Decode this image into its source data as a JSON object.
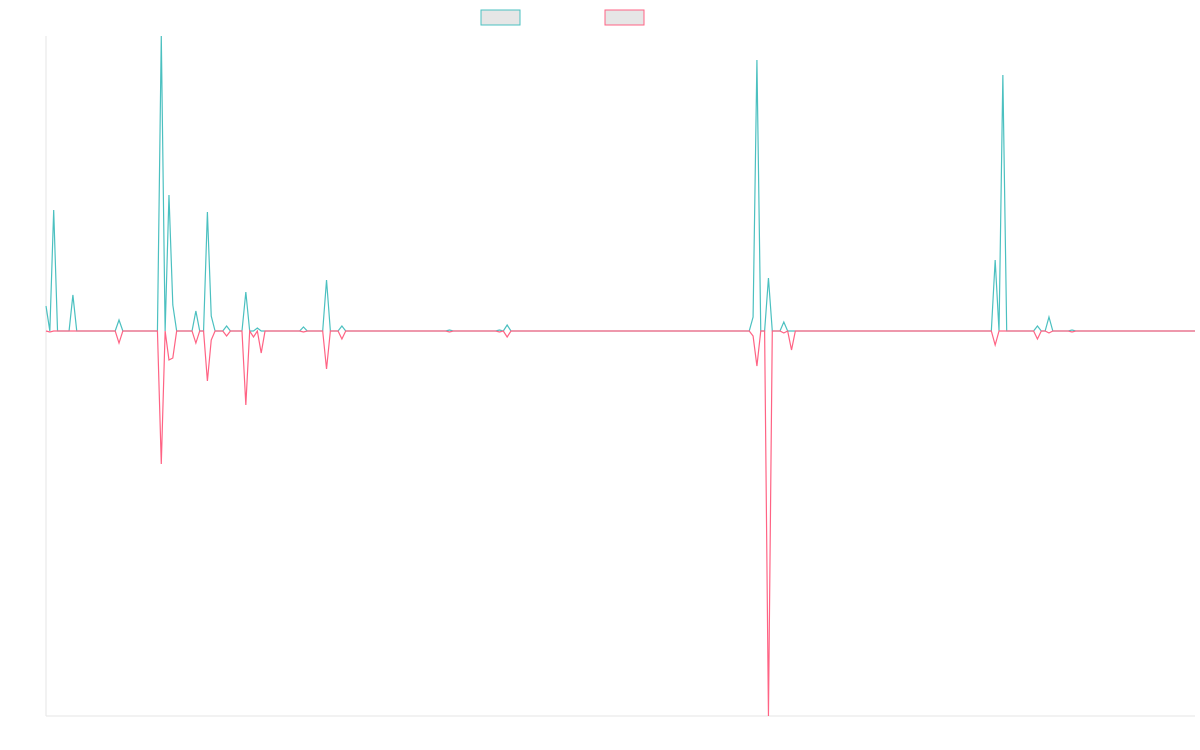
{
  "chart_data": {
    "type": "line",
    "ylim": [
      -385,
      295
    ],
    "series": [
      {
        "color": "#4bc0c0",
        "values": [
          25,
          0,
          121,
          0,
          0,
          0,
          0,
          36,
          0,
          0,
          0,
          0,
          0,
          0,
          0,
          0,
          0,
          0,
          0,
          11,
          0,
          0,
          0,
          0,
          0,
          0,
          0,
          0,
          0,
          0,
          295,
          0,
          136,
          26,
          0,
          0,
          0,
          0,
          0,
          20,
          0,
          0,
          119,
          15,
          0,
          0,
          0,
          5,
          0,
          0,
          0,
          0,
          39,
          0,
          0,
          3,
          0,
          0,
          0,
          0,
          0,
          0,
          0,
          0,
          0,
          0,
          0,
          4,
          0,
          0,
          0,
          0,
          0,
          51,
          0,
          0,
          0,
          5,
          0,
          0,
          0,
          0,
          0,
          0,
          0,
          0,
          0,
          0,
          0,
          0,
          0,
          0,
          0,
          0,
          0,
          0,
          0,
          0,
          0,
          0,
          0,
          0,
          0,
          0,
          0,
          1,
          0,
          0,
          0,
          0,
          0,
          0,
          0,
          0,
          0,
          0,
          0,
          0,
          1,
          0,
          6,
          0,
          0,
          0,
          0,
          0,
          0,
          0,
          0,
          0,
          0,
          0,
          0,
          0,
          0,
          0,
          0,
          0,
          0,
          0,
          0,
          0,
          0,
          0,
          0,
          0,
          0,
          0,
          0,
          0,
          0,
          0,
          0,
          0,
          0,
          0,
          0,
          0,
          0,
          0,
          0,
          0,
          0,
          0,
          0,
          0,
          0,
          0,
          0,
          0,
          0,
          0,
          0,
          0,
          0,
          0,
          0,
          0,
          0,
          0,
          0,
          0,
          0,
          0,
          14,
          271,
          0,
          0,
          53,
          0,
          0,
          0,
          9,
          0,
          0,
          0,
          0,
          0,
          0,
          0,
          0,
          0,
          0,
          0,
          0,
          0,
          0,
          0,
          0,
          0,
          0,
          0,
          0,
          0,
          0,
          0,
          0,
          0,
          0,
          0,
          0,
          0,
          0,
          0,
          0,
          0,
          0,
          0,
          0,
          0,
          0,
          0,
          0,
          0,
          0,
          0,
          0,
          0,
          0,
          0,
          0,
          0,
          0,
          0,
          0,
          0,
          0,
          71,
          0,
          256,
          0,
          0,
          0,
          0,
          0,
          0,
          0,
          0,
          5,
          0,
          0,
          14,
          0,
          0,
          0,
          0,
          0,
          1,
          0,
          0,
          0,
          0,
          0,
          0,
          0,
          0,
          0,
          0,
          0,
          0,
          0,
          0,
          0,
          0,
          0,
          0,
          0,
          0,
          0,
          0,
          0,
          0,
          0,
          0,
          0,
          0,
          0,
          0,
          0,
          0
        ]
      },
      {
        "color": "#ff6384",
        "values": [
          0,
          -1,
          0,
          0,
          0,
          0,
          0,
          0,
          0,
          0,
          0,
          0,
          0,
          0,
          0,
          0,
          0,
          0,
          0,
          -12,
          0,
          0,
          0,
          0,
          0,
          0,
          0,
          0,
          0,
          0,
          -133,
          0,
          -29,
          -27,
          0,
          0,
          0,
          0,
          0,
          -12,
          0,
          0,
          -50,
          -9,
          0,
          0,
          0,
          -5,
          0,
          0,
          0,
          0,
          -74,
          0,
          -6,
          0,
          -22,
          0,
          0,
          0,
          0,
          0,
          0,
          0,
          0,
          0,
          0,
          -1,
          0,
          0,
          0,
          0,
          0,
          -38,
          0,
          0,
          0,
          -8,
          0,
          0,
          0,
          0,
          0,
          0,
          0,
          0,
          0,
          0,
          0,
          0,
          0,
          0,
          0,
          0,
          0,
          0,
          0,
          0,
          0,
          0,
          0,
          0,
          0,
          0,
          0,
          -1,
          0,
          0,
          0,
          0,
          0,
          0,
          0,
          0,
          0,
          0,
          0,
          0,
          -1,
          0,
          -6,
          0,
          0,
          0,
          0,
          0,
          0,
          0,
          0,
          0,
          0,
          0,
          0,
          0,
          0,
          0,
          0,
          0,
          0,
          0,
          0,
          0,
          0,
          0,
          0,
          0,
          0,
          0,
          0,
          0,
          0,
          0,
          0,
          0,
          0,
          0,
          0,
          0,
          0,
          0,
          0,
          0,
          0,
          0,
          0,
          0,
          0,
          0,
          0,
          0,
          0,
          0,
          0,
          0,
          0,
          0,
          0,
          0,
          0,
          0,
          0,
          0,
          0,
          0,
          -5,
          -35,
          0,
          0,
          -385,
          0,
          0,
          0,
          -2,
          0,
          -19,
          0,
          0,
          0,
          0,
          0,
          0,
          0,
          0,
          0,
          0,
          0,
          0,
          0,
          0,
          0,
          0,
          0,
          0,
          0,
          0,
          0,
          0,
          0,
          0,
          0,
          0,
          0,
          0,
          0,
          0,
          0,
          0,
          0,
          0,
          0,
          0,
          0,
          0,
          0,
          0,
          0,
          0,
          0,
          0,
          0,
          0,
          0,
          0,
          0,
          0,
          0,
          0,
          -14,
          0,
          0,
          0,
          0,
          0,
          0,
          0,
          0,
          0,
          0,
          -8,
          0,
          0,
          -2,
          0,
          0,
          0,
          0,
          0,
          -1,
          0,
          0,
          0,
          0,
          0,
          0,
          0,
          0,
          0,
          0,
          0,
          0,
          0,
          0,
          0,
          0,
          0,
          0,
          0,
          0,
          0,
          0,
          0,
          0,
          0,
          0,
          0,
          0,
          0,
          0,
          0,
          0
        ]
      }
    ]
  }
}
